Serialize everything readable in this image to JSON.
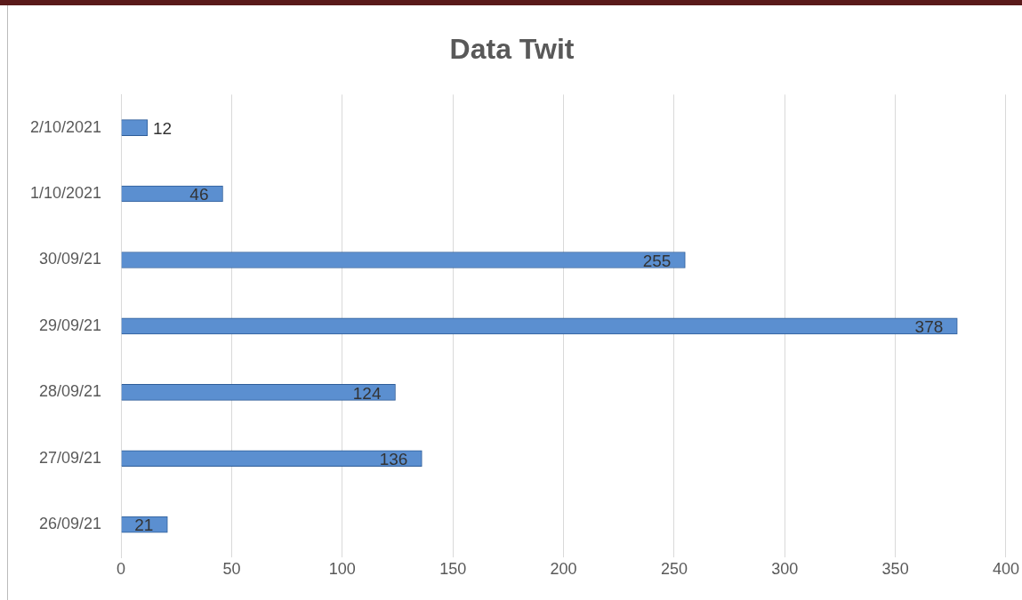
{
  "chart_data": {
    "type": "bar",
    "title": "Data Twit",
    "orientation": "horizontal",
    "categories": [
      "2/10/2021",
      "1/10/2021",
      "30/09/21",
      "29/09/21",
      "28/09/21",
      "27/09/21",
      "26/09/21"
    ],
    "values": [
      12,
      46,
      255,
      378,
      124,
      136,
      21
    ],
    "color": "#5b8fd0",
    "xlim": [
      0,
      400
    ],
    "xticks": [
      0,
      50,
      100,
      150,
      200,
      250,
      300,
      350,
      400
    ],
    "grid": "x",
    "data_labels": true
  }
}
